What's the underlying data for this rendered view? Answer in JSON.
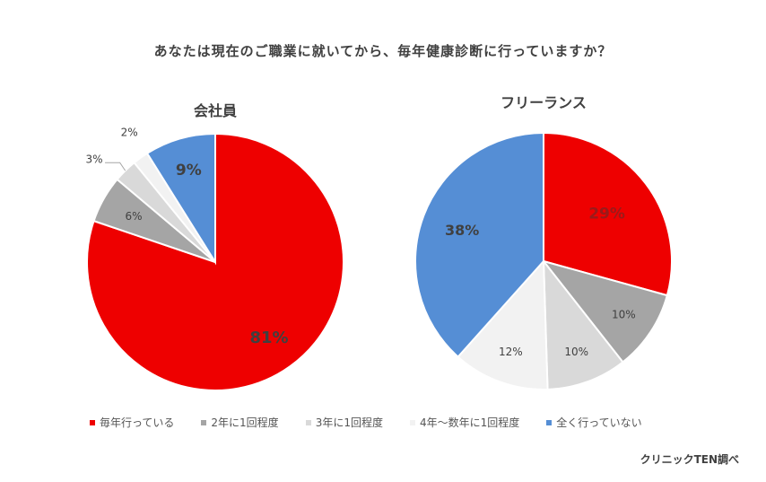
{
  "title": "あなたは現在のご職業に就いてから、毎年健康診断に行っていますか？",
  "source": "クリニックTEN調べ",
  "colors": {
    "annual": "#ee0000",
    "every2": "#a5a5a5",
    "every3": "#d9d9d9",
    "every4plus": "#f2f2f2",
    "never": "#558ed5"
  },
  "chart_data": [
    {
      "type": "pie",
      "title": "会社員",
      "categories": [
        "毎年行っている",
        "2年に1回程度",
        "3年に1回程度",
        "4年～数年に1回程度",
        "全く行っていない"
      ],
      "values": [
        81,
        6,
        3,
        2,
        9
      ],
      "labels": [
        "81%",
        "6%",
        "3%",
        "2%",
        "9%"
      ]
    },
    {
      "type": "pie",
      "title": "フリーランス",
      "categories": [
        "毎年行っている",
        "2年に1回程度",
        "3年に1回程度",
        "4年～数年に1回程度",
        "全く行っていない"
      ],
      "values": [
        29,
        10,
        10,
        12,
        38
      ],
      "labels": [
        "29%",
        "10%",
        "10%",
        "12%",
        "38%"
      ]
    }
  ],
  "legend": [
    {
      "label": "毎年行っている",
      "color_key": "annual"
    },
    {
      "label": "2年に1回程度",
      "color_key": "every2"
    },
    {
      "label": "3年に1回程度",
      "color_key": "every3"
    },
    {
      "label": "4年～数年に1回程度",
      "color_key": "every4plus"
    },
    {
      "label": "全く行っていない",
      "color_key": "never"
    }
  ]
}
